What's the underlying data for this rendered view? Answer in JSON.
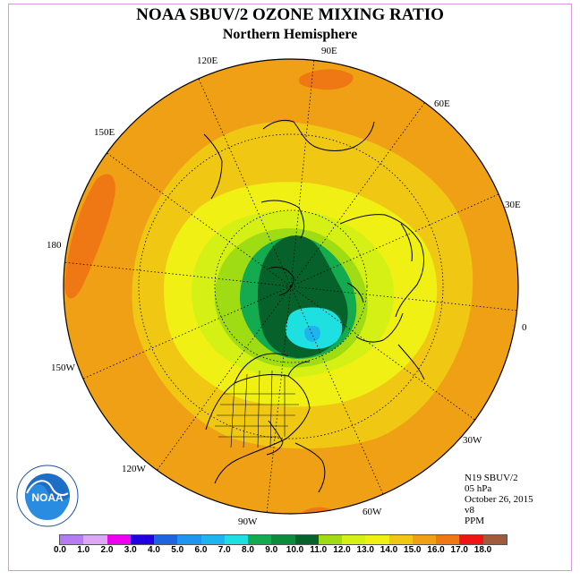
{
  "header": {
    "title": "NOAA SBUV/2 OZONE MIXING RATIO",
    "subtitle": "Northern Hemisphere"
  },
  "longitude_labels": {
    "e90": "90E",
    "e60": "60E",
    "e30": "30E",
    "zero": "0",
    "w30": "30W",
    "w60": "60W",
    "w90": "90W",
    "w120": "120W",
    "w150": "150W",
    "e180": "180",
    "e150": "150E",
    "e120": "120E"
  },
  "info": {
    "satellite": "N19 SBUV/2",
    "pressure": "05 hPa",
    "date": "October 26, 2015",
    "version": "v8",
    "units": "PPM"
  },
  "logo": {
    "text": "NOAA"
  },
  "colorbar": {
    "colors": [
      "#b47cf0",
      "#dca8f4",
      "#f000f0",
      "#2000e0",
      "#1e64e0",
      "#1e96f0",
      "#1eb4f0",
      "#1ee0e0",
      "#14aa50",
      "#0a8c3c",
      "#06622a",
      "#a0dc14",
      "#d4f014",
      "#f0f014",
      "#f0c814",
      "#f0a014",
      "#f07814",
      "#f01414",
      "#a05a3c"
    ],
    "ticks": [
      "0.0",
      "1.0",
      "2.0",
      "3.0",
      "4.0",
      "5.0",
      "6.0",
      "7.0",
      "8.0",
      "9.0",
      "10.0",
      "11.0",
      "12.0",
      "13.0",
      "14.0",
      "15.0",
      "16.0",
      "17.0",
      "18.0"
    ]
  },
  "field_colors": {
    "orange": "#f0a014",
    "light_orange": "#f0c814",
    "yellow": "#f0f014",
    "lime": "#d4f014",
    "green": "#a0dc14",
    "mid_green": "#14aa50",
    "dark_green": "#06622a",
    "cyan": "#1ee0e0",
    "blue": "#1eb4f0",
    "red_orange": "#f07814"
  }
}
